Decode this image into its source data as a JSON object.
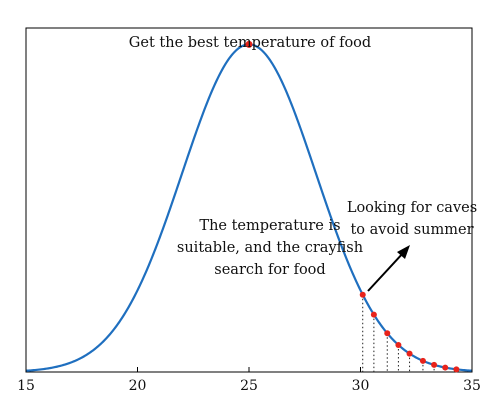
{
  "chart_data": {
    "type": "line",
    "title": "",
    "xlabel": "",
    "ylabel": "",
    "xlim": [
      15,
      35
    ],
    "ylim": [
      0,
      1.05
    ],
    "xticks": [
      15,
      20,
      25,
      30,
      35
    ],
    "grid": false,
    "series": [
      {
        "curve": "gaussian",
        "mu": 25,
        "sigma": 3,
        "peak": 1.0,
        "color": "#1f6fbf"
      }
    ],
    "peak_point": {
      "x": 25,
      "y": 1.0,
      "color": "#e8231b"
    },
    "highlight_points": {
      "color": "#e8231b",
      "x": [
        30.1,
        30.6,
        31.2,
        31.7,
        32.2,
        32.8,
        33.3,
        33.8,
        34.3
      ]
    },
    "annotations": {
      "peak": "Get the best temperature of food",
      "middle": [
        "The temperature is",
        "suitable, and the crayfish",
        "search for food"
      ],
      "right": [
        "Looking for caves",
        "to avoid summer"
      ]
    }
  }
}
